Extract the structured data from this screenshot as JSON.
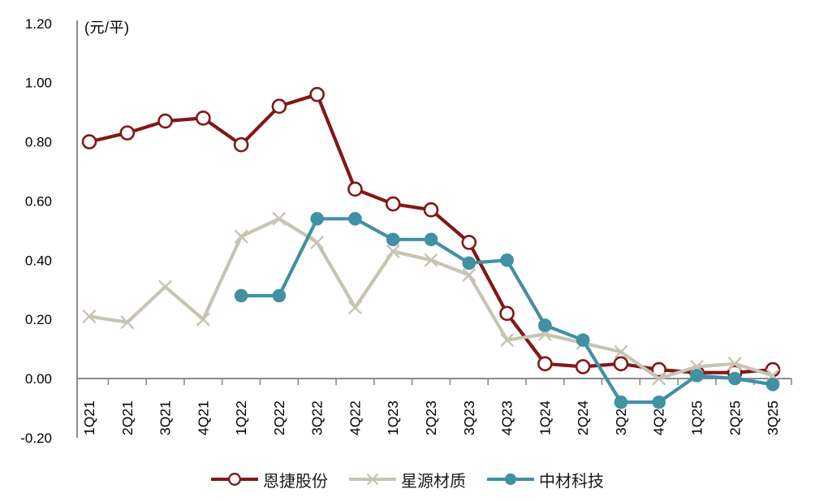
{
  "chart_data": {
    "type": "line",
    "title": "",
    "unit_label": "(元/平)",
    "xlabel": "",
    "ylabel": "",
    "grid": "off",
    "legend_position": "bottom",
    "ylim": [
      -0.2,
      1.2
    ],
    "y_tick_step": 0.2,
    "y_tick_labels": [
      "1.20",
      "1.00",
      "0.80",
      "0.60",
      "0.40",
      "0.20",
      "0.00",
      "-0.20"
    ],
    "axis_color": "#8c8c8c",
    "text_color": "#000000",
    "categories": [
      "1Q21",
      "2Q21",
      "3Q21",
      "4Q21",
      "1Q22",
      "2Q22",
      "3Q22",
      "4Q22",
      "1Q23",
      "2Q23",
      "3Q23",
      "4Q23",
      "1Q24",
      "2Q24",
      "3Q24",
      "4Q24",
      "1Q25",
      "2Q25",
      "3Q25"
    ],
    "series": [
      {
        "name": "恩捷股份",
        "color": "#821717",
        "marker": "circle-open",
        "values": [
          0.8,
          0.83,
          0.87,
          0.88,
          0.79,
          0.92,
          0.96,
          0.64,
          0.59,
          0.57,
          0.46,
          0.22,
          0.05,
          0.04,
          0.05,
          0.03,
          0.02,
          0.02,
          0.03
        ]
      },
      {
        "name": "星源材质",
        "color": "#c8c4b4",
        "marker": "x-cross",
        "values": [
          0.21,
          0.19,
          0.31,
          0.2,
          0.48,
          0.54,
          0.46,
          0.24,
          0.43,
          0.4,
          0.35,
          0.13,
          0.15,
          0.12,
          0.09,
          0.0,
          0.04,
          0.05,
          0.01
        ]
      },
      {
        "name": "中材科技",
        "color": "#4190a4",
        "marker": "circle-filled",
        "values": [
          null,
          null,
          null,
          null,
          0.28,
          0.28,
          0.54,
          0.54,
          0.47,
          0.47,
          0.39,
          0.4,
          0.18,
          0.13,
          -0.08,
          -0.08,
          0.01,
          0.0,
          -0.02
        ]
      }
    ]
  }
}
